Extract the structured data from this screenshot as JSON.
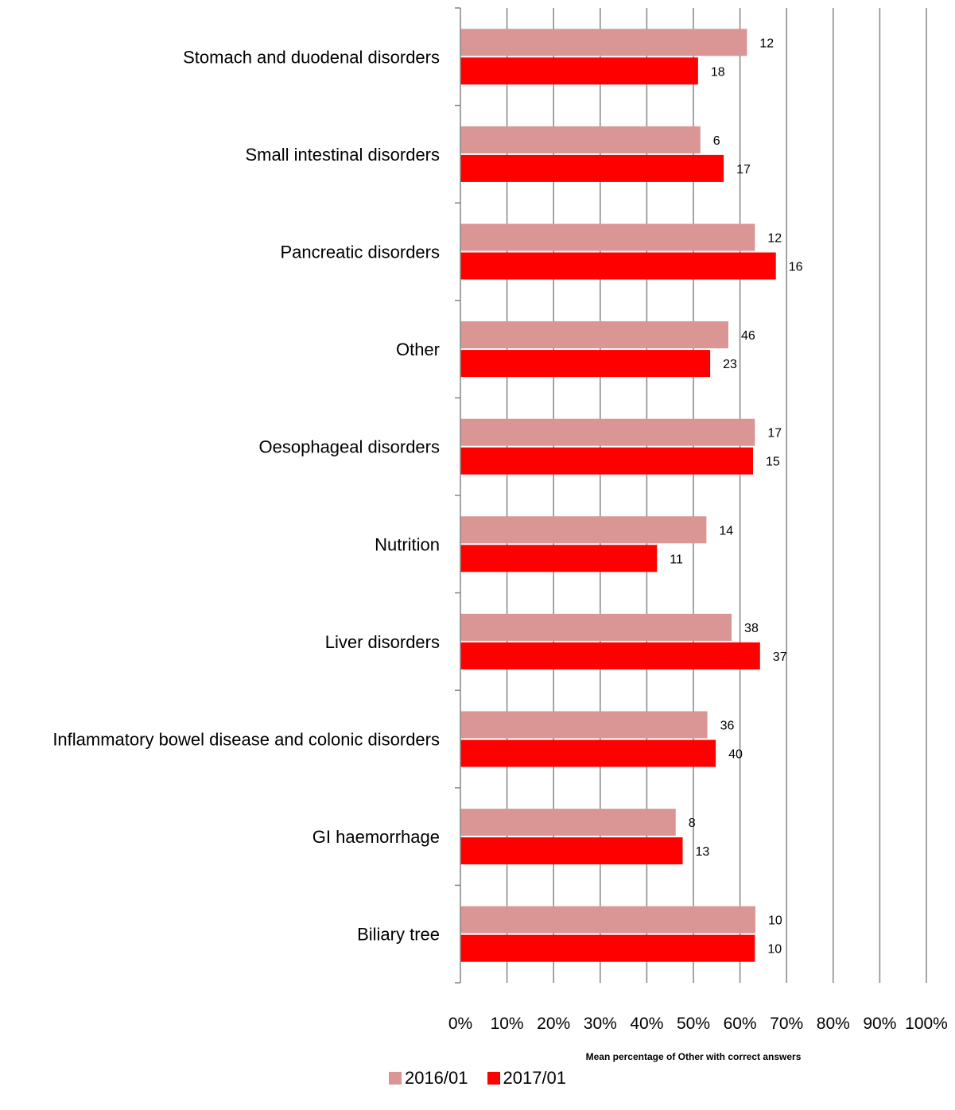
{
  "chart_data": {
    "type": "bar",
    "orientation": "horizontal",
    "categories": [
      "Stomach and duodenal disorders",
      "Small intestinal disorders",
      "Pancreatic disorders",
      "Other",
      "Oesophageal disorders",
      "Nutrition",
      "Liver disorders",
      "Inflammatory bowel disease and colonic disorders",
      "GI haemorrhage",
      "Biliary tree"
    ],
    "series": [
      {
        "name": "2016/01",
        "color": "#d99694",
        "values": [
          61.5,
          51.5,
          63.2,
          57.5,
          63.2,
          52.8,
          58.2,
          53.0,
          46.2,
          63.3
        ],
        "labels": [
          "12",
          "6",
          "12",
          "46",
          "17",
          "14",
          "38",
          "36",
          "8",
          "10"
        ]
      },
      {
        "name": "2017/01",
        "color": "#ff0000",
        "values": [
          51.0,
          56.5,
          67.7,
          53.6,
          62.8,
          42.2,
          64.3,
          54.8,
          47.7,
          63.2
        ],
        "labels": [
          "18",
          "17",
          "16",
          "23",
          "15",
          "11",
          "37",
          "40",
          "13",
          "10"
        ]
      }
    ],
    "xticks": [
      "0%",
      "10%",
      "20%",
      "30%",
      "40%",
      "50%",
      "60%",
      "70%",
      "80%",
      "90%",
      "100%"
    ],
    "xlim": [
      0,
      100
    ],
    "xlabel": "Mean percentage of Other with correct answers",
    "ylabel": "",
    "title": "",
    "grid": "vertical",
    "legend_position": "bottom"
  }
}
